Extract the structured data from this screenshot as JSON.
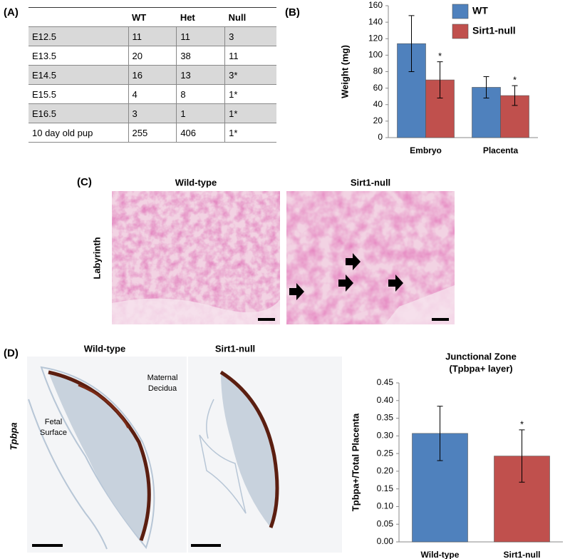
{
  "panels": {
    "a": "(A)",
    "b": "(B)",
    "c": "(C)",
    "d": "(D)"
  },
  "table": {
    "columns": [
      "WT",
      "Het",
      "Null"
    ],
    "rows": [
      [
        "E12.5",
        "11",
        "11",
        "3"
      ],
      [
        "E13.5",
        "20",
        "38",
        "11"
      ],
      [
        "E14.5",
        "16",
        "13",
        "3*"
      ],
      [
        "E15.5",
        "4",
        "8",
        "1*"
      ],
      [
        "E16.5",
        "3",
        "1",
        "1*"
      ],
      [
        "10 day old pup",
        "255",
        "406",
        "1*"
      ]
    ]
  },
  "chart_data": [
    {
      "type": "bar",
      "ylabel": "Weight (mg)",
      "categories": [
        "Embryo",
        "Placenta"
      ],
      "series": [
        {
          "name": "WT",
          "color": "#4f81bd",
          "values": [
            114,
            61
          ],
          "errors": [
            34,
            13
          ]
        },
        {
          "name": "Sirt1-null",
          "color": "#c0504d",
          "values": [
            70,
            51
          ],
          "errors": [
            22,
            12
          ],
          "significance": [
            "*",
            "*"
          ]
        }
      ],
      "ylim": [
        0,
        160
      ],
      "yticks": [
        0,
        20,
        40,
        60,
        80,
        100,
        120,
        140,
        160
      ],
      "grid": false,
      "legend": "top-right"
    },
    {
      "type": "bar",
      "title": "Junctional Zone",
      "subtitle": "(Tpbpa+ layer)",
      "ylabel": "Tpbpa+/Total Placenta",
      "categories": [
        "Wild-type",
        "Sirt1-null"
      ],
      "values": [
        0.307,
        0.243
      ],
      "errors": [
        0.077,
        0.074
      ],
      "significance": [
        null,
        "*"
      ],
      "colors": [
        "#4f81bd",
        "#c0504d"
      ],
      "ylim": [
        0,
        0.45
      ],
      "yticks": [
        {
          "value": 0,
          "label": "0.00"
        },
        {
          "value": 0.05,
          "label": "0.05"
        },
        {
          "value": 0.1,
          "label": "0.10"
        },
        {
          "value": 0.15,
          "label": "0.15"
        },
        {
          "value": 0.2,
          "label": "0.20"
        },
        {
          "value": 0.25,
          "label": "0.25"
        },
        {
          "value": 0.3,
          "label": "0.30"
        },
        {
          "value": 0.35,
          "label": "0.35"
        },
        {
          "value": 0.4,
          "label": "0.40"
        },
        {
          "value": 0.45,
          "label": "0.45"
        }
      ],
      "grid": false
    }
  ],
  "micrographs": {
    "labyrinth": {
      "row_label": "Labyrinth",
      "titles": [
        "Wild-type",
        "Sirt1-null"
      ]
    },
    "tpbpa": {
      "row_label": "Tpbpa",
      "titles": [
        "Wild-type",
        "Sirt1-null"
      ],
      "annotations": [
        [
          "Maternal",
          "Decidua"
        ],
        [
          "Fetal",
          "Surface"
        ]
      ]
    }
  }
}
